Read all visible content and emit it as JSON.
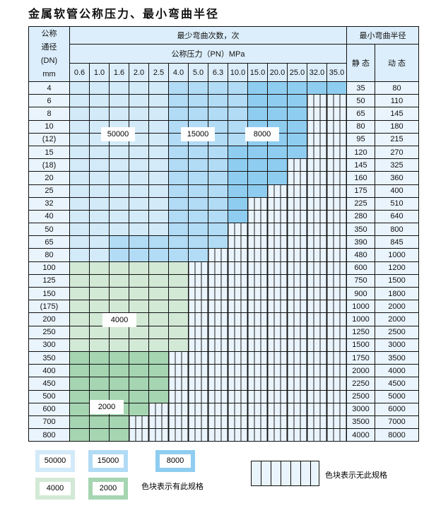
{
  "title": "金属软管公称压力、最小弯曲半径",
  "header": {
    "dn": [
      "公称",
      "通径",
      "(DN)",
      "mm"
    ],
    "cycles": "最少弯曲次数，次",
    "pressure": "公称压力（PN）MPa",
    "radius": "最小弯曲半径",
    "static": "静 态",
    "dynamic": "动 态",
    "pressures": [
      "0.6",
      "1.0",
      "1.6",
      "2.0",
      "2.5",
      "4.0",
      "5.0",
      "6.3",
      "10.0",
      "15.0",
      "20.0",
      "25.0",
      "32.0",
      "35.0"
    ]
  },
  "rows": [
    {
      "dn": "4",
      "static": "35",
      "dynamic": "80",
      "cells": "LLLLLMMMMDDDDD"
    },
    {
      "dn": "6",
      "static": "50",
      "dynamic": "110",
      "cells": "LLLLLMMMMDDDxx"
    },
    {
      "dn": "8",
      "static": "65",
      "dynamic": "145",
      "cells": "LLLLLMMMMDDDxx"
    },
    {
      "dn": "10",
      "static": "80",
      "dynamic": "180",
      "cells": "LLLLLMMMMDDDxx"
    },
    {
      "dn": "(12)",
      "static": "95",
      "dynamic": "215",
      "cells": "LLLLLMMMMDDDxx"
    },
    {
      "dn": "15",
      "static": "120",
      "dynamic": "270",
      "cells": "LLLLLMMMDDDDxx"
    },
    {
      "dn": "(18)",
      "static": "145",
      "dynamic": "325",
      "cells": "LLLLLMMMDDDxxx"
    },
    {
      "dn": "20",
      "static": "160",
      "dynamic": "360",
      "cells": "LLLLLMMMDDDxxx"
    },
    {
      "dn": "25",
      "static": "175",
      "dynamic": "400",
      "cells": "LLLLLMMMDDxxxx"
    },
    {
      "dn": "32",
      "static": "225",
      "dynamic": "510",
      "cells": "LLLLLMMMDxxxxx"
    },
    {
      "dn": "40",
      "static": "280",
      "dynamic": "640",
      "cells": "LLLLLMMMDxxxxx"
    },
    {
      "dn": "50",
      "static": "350",
      "dynamic": "800",
      "cells": "LLLLLMMMxxxxxx"
    },
    {
      "dn": "65",
      "static": "390",
      "dynamic": "845",
      "cells": "LLMMMMMMxxxxxx"
    },
    {
      "dn": "80",
      "static": "480",
      "dynamic": "1000",
      "cells": "LLMMMMMxxxxxxx"
    },
    {
      "dn": "100",
      "static": "600",
      "dynamic": "1200",
      "cells": "ggggggxxxxxxxx"
    },
    {
      "dn": "125",
      "static": "750",
      "dynamic": "1500",
      "cells": "ggggggxxxxxxxx"
    },
    {
      "dn": "150",
      "static": "900",
      "dynamic": "1800",
      "cells": "ggggggxxxxxxxx"
    },
    {
      "dn": "(175)",
      "static": "1000",
      "dynamic": "2000",
      "cells": "ggggggxxxxxxxx"
    },
    {
      "dn": "200",
      "static": "1000",
      "dynamic": "2000",
      "cells": "ggggggxxxxxxxx"
    },
    {
      "dn": "250",
      "static": "1250",
      "dynamic": "2500",
      "cells": "ggggggxxxxxxxx"
    },
    {
      "dn": "300",
      "static": "1500",
      "dynamic": "3000",
      "cells": "ggggggxxxxxxxx"
    },
    {
      "dn": "350",
      "static": "1750",
      "dynamic": "3500",
      "cells": "GGGGGxxxxxxxxx"
    },
    {
      "dn": "400",
      "static": "2000",
      "dynamic": "4000",
      "cells": "GGGGGxxxxxxxxx"
    },
    {
      "dn": "450",
      "static": "2250",
      "dynamic": "4500",
      "cells": "GGGGGxxxxxxxxx"
    },
    {
      "dn": "500",
      "static": "2500",
      "dynamic": "5000",
      "cells": "GGGGGxxxxxxxxx"
    },
    {
      "dn": "600",
      "static": "3000",
      "dynamic": "6000",
      "cells": "GGGGxxxxxxxxxx"
    },
    {
      "dn": "700",
      "static": "3500",
      "dynamic": "7000",
      "cells": "GGGxxxxxxxxxxx"
    },
    {
      "dn": "800",
      "static": "4000",
      "dynamic": "8000",
      "cells": "GGGxxxxxxxxxxx"
    }
  ],
  "region_labels": [
    "50000",
    "15000",
    "8000",
    "4000",
    "2000"
  ],
  "legend": {
    "items": [
      "50000",
      "15000",
      "8000",
      "4000",
      "2000"
    ],
    "has_spec": "色块表示有此规格",
    "no_spec": "色块表示无此规格"
  },
  "colors": {
    "L": "#d3eaf9",
    "M": "#b2dbf5",
    "D": "#8fcdf0",
    "g": "#d2e9d6",
    "G": "#a5d5b1",
    "empty": "#eaf4fc"
  }
}
